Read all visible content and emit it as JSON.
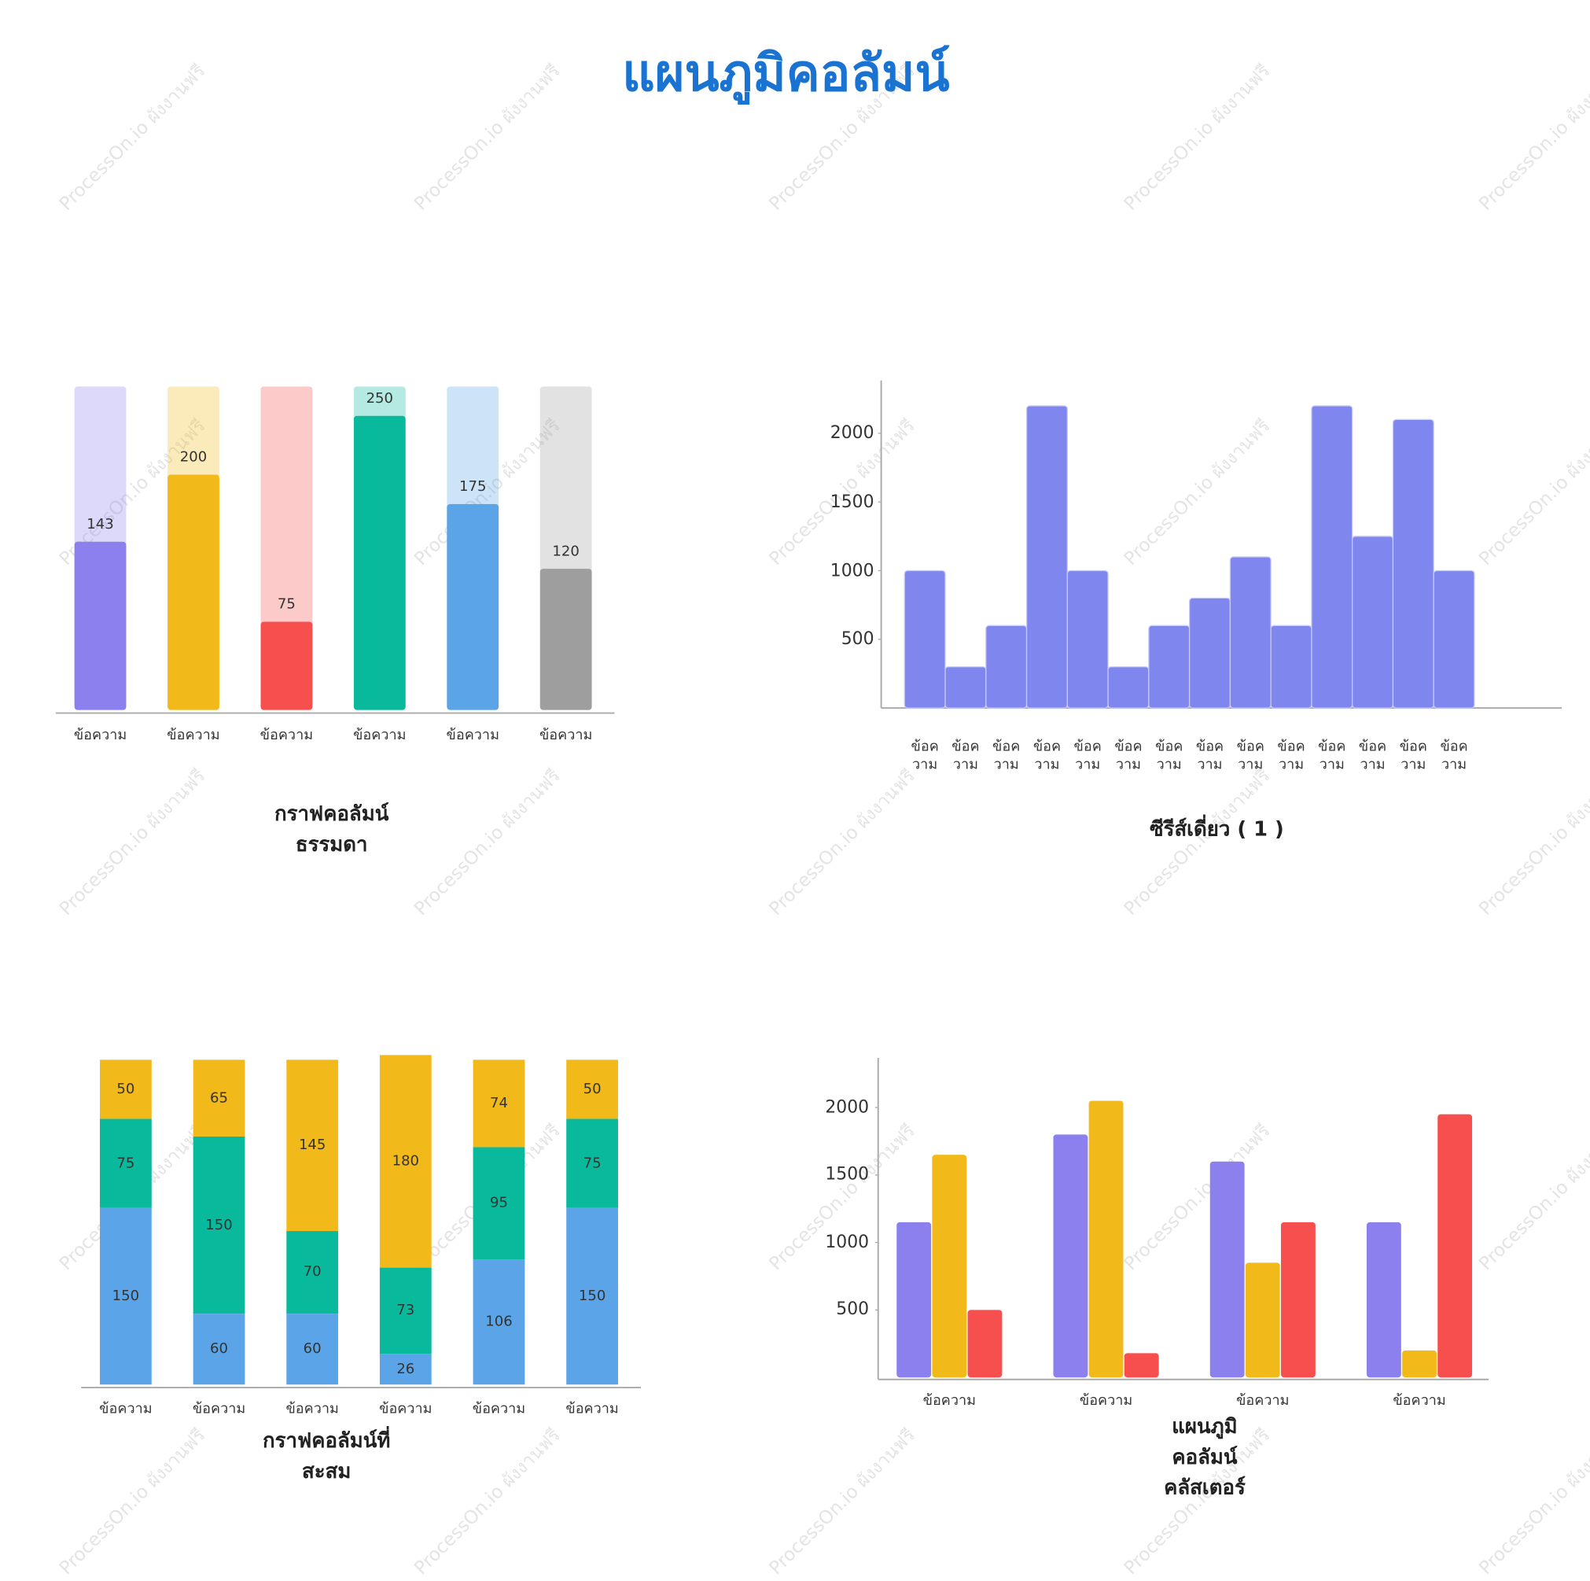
{
  "title": "แผนภูมิคอลัมน์",
  "watermark": "ProcessOn.io ผังงานฟรี",
  "chart_data": [
    {
      "type": "bar",
      "title": "กราฟคอลัมน์\nธรรมดา",
      "categories": [
        "ข้อความ",
        "ข้อความ",
        "ข้อความ",
        "ข้อความ",
        "ข้อความ",
        "ข้อความ"
      ],
      "values": [
        143,
        200,
        75,
        250,
        175,
        120
      ],
      "colors": [
        "#8b80ee",
        "#f2b91a",
        "#f74e4e",
        "#08b99b",
        "#5ba4e8",
        "#9e9e9e"
      ],
      "ylim": [
        0,
        275
      ],
      "data_labels": true
    },
    {
      "type": "bar",
      "title": "ซีรีส์เดี่ยว ( 1 )",
      "categories": [
        "ข้อค\nวาม",
        "ข้อค\nวาม",
        "ข้อค\nวาม",
        "ข้อค\nวาม",
        "ข้อค\nวาม",
        "ข้อค\nวาม",
        "ข้อค\nวาม",
        "ข้อค\nวาม",
        "ข้อค\nวาม",
        "ข้อค\nวาม",
        "ข้อค\nวาม",
        "ข้อค\nวาม",
        "ข้อค\nวาม",
        "ข้อค\nวาม"
      ],
      "values": [
        1000,
        300,
        600,
        2200,
        1000,
        300,
        600,
        800,
        1100,
        600,
        2200,
        1250,
        2100,
        1000
      ],
      "color": "#7f87ee",
      "ylim": [
        0,
        2400
      ],
      "yticks": [
        500,
        1000,
        1500,
        2000
      ]
    },
    {
      "type": "stacked_bar",
      "title": "กราฟคอลัมน์ที่\nสะสม",
      "categories": [
        "ข้อความ",
        "ข้อความ",
        "ข้อความ",
        "ข้อความ",
        "ข้อความ",
        "ข้อความ"
      ],
      "series": [
        {
          "color": "#5ba4e8",
          "values": [
            150,
            60,
            60,
            26,
            106,
            150
          ]
        },
        {
          "color": "#08b99b",
          "values": [
            75,
            150,
            70,
            73,
            95,
            75
          ]
        },
        {
          "color": "#f2b91a",
          "values": [
            50,
            65,
            145,
            180,
            74,
            50
          ]
        }
      ],
      "ylim": [
        0,
        280
      ],
      "data_labels": true
    },
    {
      "type": "grouped_bar",
      "title": "แผนภูมิ\nคอลัมน์\nคลัสเตอร์",
      "categories": [
        "ข้อความ",
        "ข้อความ",
        "ข้อความ",
        "ข้อความ"
      ],
      "series": [
        {
          "color": "#8b80ee",
          "values": [
            1150,
            1800,
            1600,
            1150
          ]
        },
        {
          "color": "#f2b91a",
          "values": [
            1650,
            2050,
            850,
            200
          ]
        },
        {
          "color": "#f74e4e",
          "values": [
            500,
            180,
            1150,
            1950
          ]
        }
      ],
      "ylim": [
        0,
        2300
      ],
      "yticks": [
        500,
        1000,
        1500,
        2000
      ]
    }
  ]
}
